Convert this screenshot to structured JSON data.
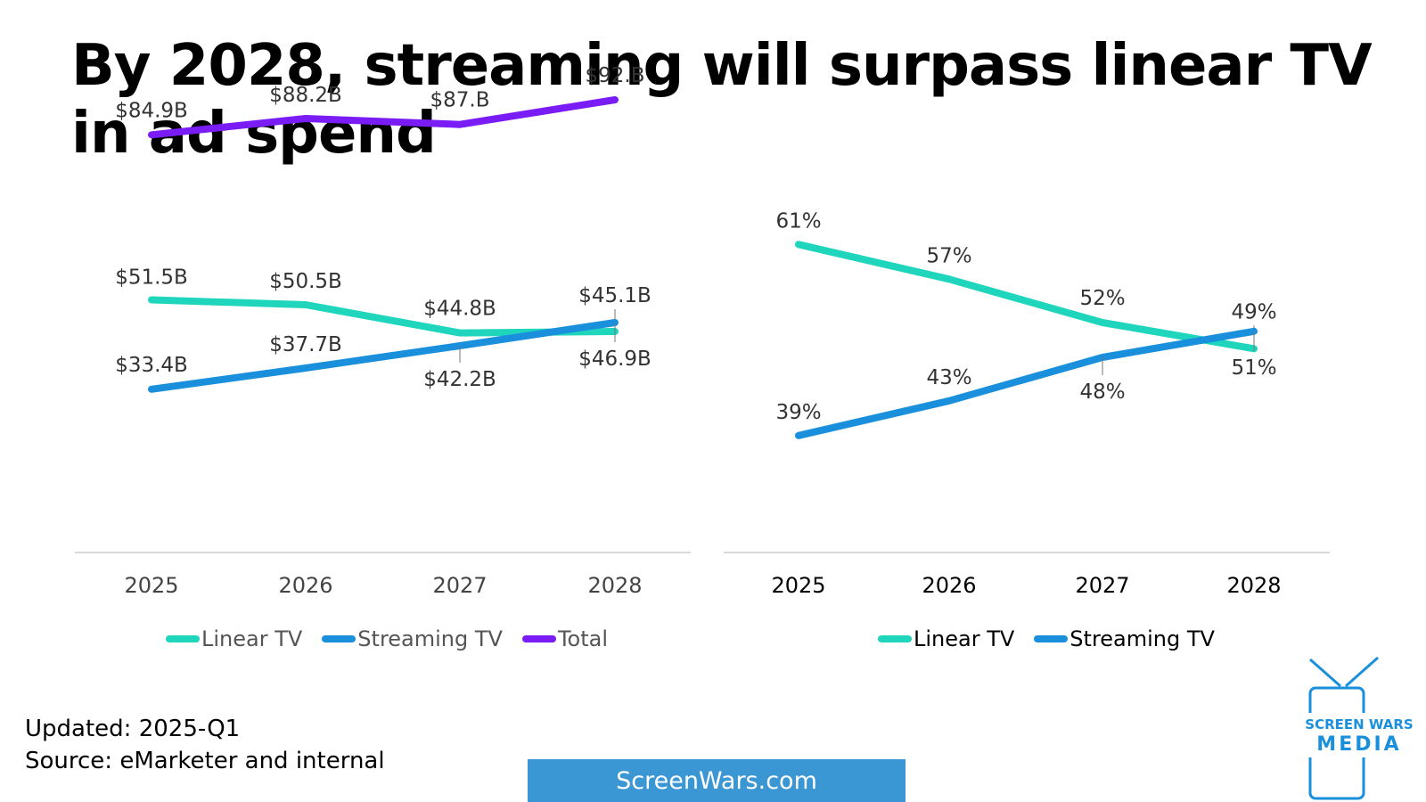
{
  "title": "By 2028, streaming will surpass linear TV in ad spend",
  "footer": {
    "updated": "Updated: 2025-Q1",
    "source": "Source: eMarketer and internal",
    "site": "ScreenWars.com",
    "logo_line1": "SCREEN WARS",
    "logo_line2": "MEDIA"
  },
  "colors": {
    "linear": "#1fd6bd",
    "streaming": "#1a90dd",
    "total": "#7a1cf5",
    "axis": "#d9d9d9"
  },
  "chart_data": [
    {
      "type": "line",
      "categories": [
        "2025",
        "2026",
        "2027",
        "2028"
      ],
      "unit": "$B",
      "series": [
        {
          "name": "Linear TV",
          "values": [
            51.5,
            50.5,
            44.8,
            45.1
          ],
          "labels": [
            "$51.5B",
            "$50.5B",
            "$44.8B",
            "$45.1B"
          ]
        },
        {
          "name": "Streaming TV",
          "values": [
            33.4,
            37.7,
            42.2,
            46.9
          ],
          "labels": [
            "$33.4B",
            "$37.7B",
            "$42.2B",
            "$46.9B"
          ]
        },
        {
          "name": "Total",
          "values": [
            84.9,
            88.2,
            87.0,
            92.0
          ],
          "labels": [
            "$84.9B",
            "$88.2B",
            "$87.B",
            "$92.B"
          ]
        }
      ],
      "legend": [
        "Linear TV",
        "Streaming TV",
        "Total"
      ],
      "legend_position": "bottom",
      "grid": false
    },
    {
      "type": "line",
      "categories": [
        "2025",
        "2026",
        "2027",
        "2028"
      ],
      "unit": "%",
      "series": [
        {
          "name": "Linear TV",
          "values": [
            61,
            57,
            52,
            49
          ],
          "labels": [
            "61%",
            "57%",
            "52%",
            "49%"
          ]
        },
        {
          "name": "Streaming TV",
          "values": [
            39,
            43,
            48,
            51
          ],
          "labels": [
            "39%",
            "43%",
            "48%",
            "51%"
          ]
        }
      ],
      "legend": [
        "Linear TV",
        "Streaming TV"
      ],
      "legend_position": "bottom",
      "grid": false
    }
  ]
}
